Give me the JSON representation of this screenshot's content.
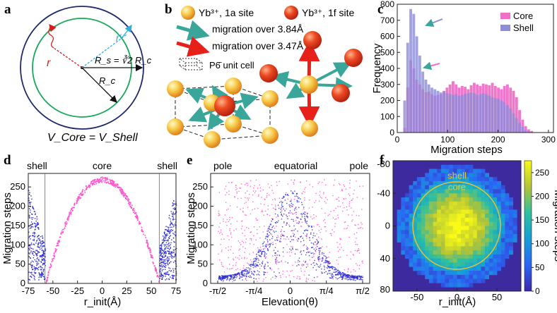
{
  "panel_labels": {
    "a": "a",
    "b": "b",
    "c": "c",
    "d": "d",
    "e": "e",
    "f": "f"
  },
  "colors": {
    "core": "#ff55cc",
    "shell": "#2b2bd6",
    "core_bar": "#f070c8",
    "shell_bar": "#8c8cd8",
    "green": "#1aa85a",
    "navy": "#1d2a6b",
    "arrow_red": "#e8201a",
    "arrow_teal": "#3aa69a",
    "yb_yellow": "#f6c84a"
  },
  "panel_a": {
    "r_label": "r",
    "r_prime_label": "r'",
    "rs_label": "R_s = ∛2 R_c",
    "rc_label": "R_c",
    "equation": "V_Core = V_Shell"
  },
  "panel_b": {
    "legend_1a": "Yb³⁺, 1a site",
    "legend_1f": "Yb³⁺, 1f  site",
    "legend_short": "migration over 3.84Å",
    "legend_long": "migration over 3.47Å",
    "legend_cell": "P6̄ unit cell"
  },
  "chart_data": [
    {
      "panel": "c",
      "type": "bar",
      "title": "",
      "xlabel": "Migration steps",
      "ylabel": "Frequency",
      "xlim": [
        0,
        310
      ],
      "ylim": [
        0,
        800
      ],
      "xticks": [
        0,
        100,
        200,
        300
      ],
      "yticks": [
        0,
        100,
        200,
        300,
        400,
        500,
        600,
        700,
        800
      ],
      "legend_position": "top-right",
      "bin_width": 6,
      "series": [
        {
          "name": "Core",
          "start": 12,
          "values": [
            30,
            280,
            450,
            400,
            330,
            300,
            270,
            250,
            255,
            240,
            230,
            235,
            240,
            260,
            280,
            300,
            320,
            300,
            280,
            290,
            285,
            270,
            295,
            310,
            300,
            290,
            305,
            300,
            295,
            310,
            290,
            280,
            270,
            290,
            300,
            280,
            260,
            220,
            140,
            80,
            40,
            20,
            10
          ]
        },
        {
          "name": "Shell",
          "start": 12,
          "values": [
            200,
            560,
            770,
            740,
            600,
            480,
            380,
            330,
            300,
            280,
            270,
            260,
            250,
            255,
            245,
            240,
            235,
            240,
            230,
            235,
            240,
            245,
            250,
            245,
            235,
            240,
            245,
            240,
            230,
            220,
            215,
            210,
            200,
            190,
            170,
            150,
            120,
            90,
            60,
            35,
            15,
            8,
            4
          ]
        }
      ]
    },
    {
      "panel": "d",
      "type": "scatter",
      "title": "",
      "xlabel": "r_init(Å)",
      "ylabel": "Migration steps",
      "xlim": [
        -75,
        75
      ],
      "ylim": [
        0,
        285
      ],
      "xticks": [
        -75,
        -50,
        -25,
        0,
        25,
        50,
        75
      ],
      "yticks": [
        0,
        50,
        100,
        150,
        200,
        250
      ],
      "annotations": [
        "shell",
        "core",
        "shell"
      ],
      "boundary_r": 58,
      "series": [
        {
          "name": "Core",
          "model": "peak 270 at r=0, ~0 at |r|=58"
        },
        {
          "name": "Shell",
          "model": "|r| 58–75, steps 10–250"
        }
      ]
    },
    {
      "panel": "e",
      "type": "scatter",
      "title": "",
      "xlabel": "Elevation(θ)",
      "ylabel": "Migration steps",
      "ylim": [
        0,
        285
      ],
      "xticks": [
        "-π/2",
        "-π/4",
        "0",
        "π/4",
        "π/2"
      ],
      "yticks": [
        0,
        50,
        100,
        150,
        200,
        250
      ],
      "annotations": [
        "pole",
        "equatorial",
        "pole"
      ],
      "series": [
        {
          "name": "Core",
          "model": "uniform spread 0–270 across elevation"
        },
        {
          "name": "Shell",
          "model": "bell-shaped, peak ~240 at θ=0, ~20 at poles"
        }
      ]
    },
    {
      "panel": "f",
      "type": "heatmap",
      "title": "",
      "xlabel": "r_init(Å)",
      "ylabel": "",
      "xlim": [
        -80,
        80
      ],
      "ylim": [
        -80,
        80
      ],
      "xticks": [
        -50,
        0,
        50
      ],
      "yticks": [
        -80,
        -40,
        0,
        40,
        80
      ],
      "annotations": [
        "shell",
        "core"
      ],
      "colorbar": {
        "label": "Migration steps",
        "ticks": [
          0,
          50,
          100,
          150,
          200,
          250
        ],
        "max": 275
      },
      "model": "value ≈ 270·(1-(r/75)²) inside r<75; outside dark navy"
    }
  ]
}
